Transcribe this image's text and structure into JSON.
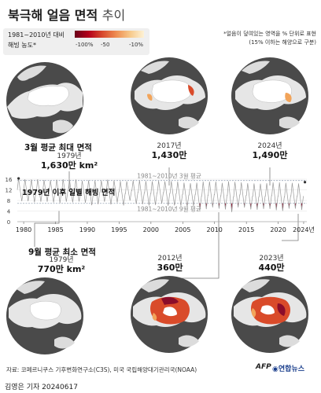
{
  "header": {
    "title_main": "북극해 얼음 면적",
    "title_sub": "추이"
  },
  "legend": {
    "line1": "1981~2010년 대비",
    "line2": "해빙 농도*",
    "ticks": [
      "-100%",
      "-50",
      "-10%"
    ]
  },
  "note": {
    "line1": "*얼음이 덮여있는 영역을 % 단위로 표현",
    "line2": "(15% 이하는 해양으로 구분)"
  },
  "panels": {
    "march_max": {
      "heading": "3월 평균 최대 면적",
      "year": "1979년",
      "value": "1,630만 km²"
    },
    "y2017": {
      "year": "2017년",
      "value": "1,430만"
    },
    "y2024": {
      "year": "2024년",
      "value": "1,490만"
    },
    "sept_min": {
      "heading": "9월 평균 최소 면적",
      "year": "1979년",
      "value": "770만 km²"
    },
    "y2012": {
      "year": "2012년",
      "value": "360만"
    },
    "y2023": {
      "year": "2023년",
      "value": "440만"
    }
  },
  "colors": {
    "ocean": "#4a4a4a",
    "land": "#e7e7e7",
    "deficit_dark": "#8b0d2a",
    "deficit_mid": "#d94b2a",
    "deficit_light": "#f2a45a",
    "normal_line": "#9aa6b8"
  },
  "chart_data": {
    "type": "line",
    "title": "1979년 이후 일별 해빙 면적",
    "ylim": [
      0,
      16
    ],
    "xlim": [
      1979,
      2024.5
    ],
    "y_ticks": [
      0,
      4,
      8,
      12,
      16
    ],
    "x_ticks": [
      "1980",
      "1985",
      "1990",
      "1995",
      "2000",
      "2005",
      "2010",
      "2015",
      "2020",
      "2024년"
    ],
    "reference_lines": [
      {
        "label": "1981~2010년 3월 평균",
        "value": 15.5
      },
      {
        "label": "1981~2010년 9월 평균",
        "value": 6.9
      }
    ],
    "series": [
      {
        "annual_max": [
          16.3,
          16.0,
          15.9,
          16.0,
          15.7,
          15.6,
          15.8,
          16.0,
          15.9,
          15.9,
          15.4,
          15.6,
          15.5,
          15.5,
          15.8,
          15.6,
          15.3,
          15.2,
          15.5,
          15.6,
          15.3,
          15.2,
          15.4,
          15.2,
          15.3,
          15.1,
          14.7,
          14.5,
          14.7,
          15.1,
          15.1,
          15.1,
          14.6,
          15.2,
          15.0,
          14.8,
          14.5,
          14.4,
          14.3,
          14.5,
          14.8,
          14.8,
          14.6,
          14.6,
          14.4,
          14.9
        ],
        "annual_min": [
          7.7,
          7.7,
          7.3,
          7.5,
          7.5,
          7.2,
          7.0,
          7.5,
          7.3,
          7.6,
          7.1,
          6.2,
          6.6,
          7.5,
          6.5,
          7.2,
          6.1,
          7.9,
          6.7,
          6.6,
          6.1,
          6.3,
          6.8,
          6.0,
          6.1,
          6.0,
          5.6,
          5.9,
          4.3,
          4.7,
          5.4,
          4.9,
          4.6,
          3.6,
          5.4,
          5.3,
          4.6,
          4.5,
          4.8,
          4.8,
          4.3,
          4.0,
          4.9,
          4.9,
          4.4
        ]
      }
    ]
  }
}
